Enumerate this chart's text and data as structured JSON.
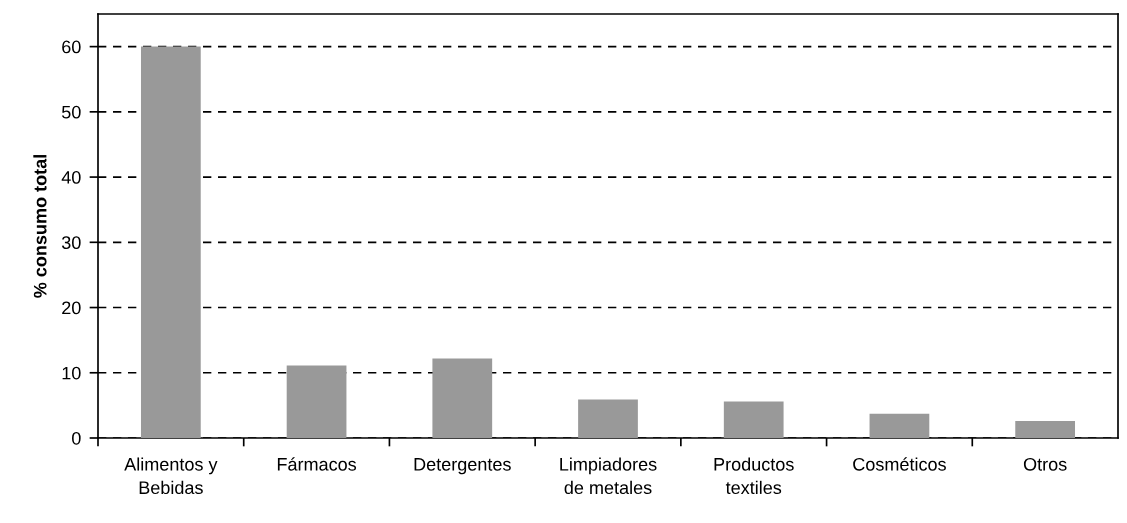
{
  "chart_data": {
    "type": "bar",
    "ylabel": "% consumo total",
    "categories": [
      "Alimentos y\nBebidas",
      "Fármacos",
      "Detergentes",
      "Limpiadores\nde metales",
      "Productos\ntextiles",
      "Cosméticos",
      "Otros"
    ],
    "values": [
      60,
      11.1,
      12.2,
      5.9,
      5.6,
      3.7,
      2.6
    ],
    "color": "#999999",
    "ylim": [
      0,
      65
    ],
    "yticks": [
      0,
      10,
      20,
      30,
      40,
      50,
      60
    ],
    "grid": "y"
  }
}
